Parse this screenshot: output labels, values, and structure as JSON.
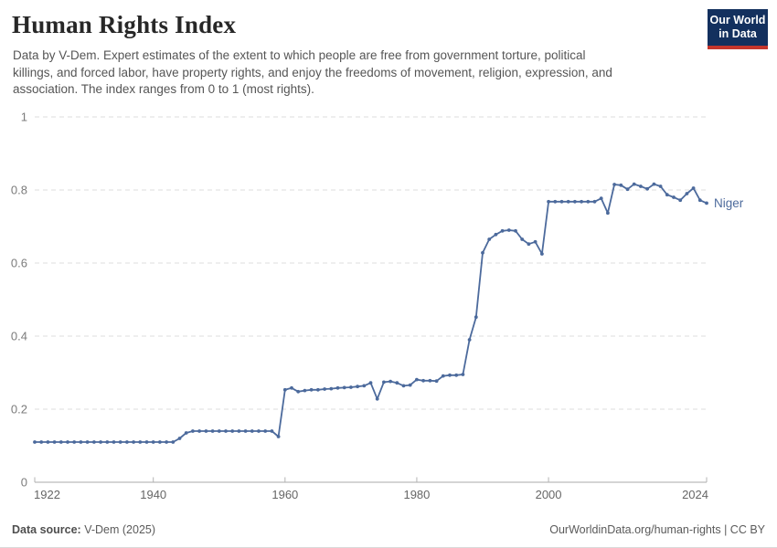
{
  "header": {
    "title": "Human Rights Index",
    "subtitle_lines": [
      "Data by V-Dem. Expert estimates of the extent to which people are free from government torture, political",
      "killings, and forced labor, have property rights, and enjoy the freedoms of movement, religion, expression, and",
      "association. The index ranges from 0 to 1 (most rights)."
    ]
  },
  "logo": {
    "line1": "Our World",
    "line2": "in Data",
    "bg_color": "#13305E",
    "bar_color": "#C5362C"
  },
  "chart_data": {
    "type": "line",
    "title": "Human Rights Index",
    "xlabel": "",
    "ylabel": "",
    "xlim": [
      1922,
      2024
    ],
    "ylim": [
      0,
      1
    ],
    "x_ticks": [
      1922,
      1940,
      1960,
      1980,
      2000,
      2024
    ],
    "y_ticks": [
      0,
      0.2,
      0.4,
      0.6,
      0.8,
      1
    ],
    "grid": true,
    "legend_position": "end-of-line",
    "series": [
      {
        "name": "Niger",
        "color": "#4C6A9C",
        "x": [
          1922,
          1923,
          1924,
          1925,
          1926,
          1927,
          1928,
          1929,
          1930,
          1931,
          1932,
          1933,
          1934,
          1935,
          1936,
          1937,
          1938,
          1939,
          1940,
          1941,
          1942,
          1943,
          1944,
          1945,
          1946,
          1947,
          1948,
          1949,
          1950,
          1951,
          1952,
          1953,
          1954,
          1955,
          1956,
          1957,
          1958,
          1959,
          1960,
          1961,
          1962,
          1963,
          1964,
          1965,
          1966,
          1967,
          1968,
          1969,
          1970,
          1971,
          1972,
          1973,
          1974,
          1975,
          1976,
          1977,
          1978,
          1979,
          1980,
          1981,
          1982,
          1983,
          1984,
          1985,
          1986,
          1987,
          1988,
          1989,
          1990,
          1991,
          1992,
          1993,
          1994,
          1995,
          1996,
          1997,
          1998,
          1999,
          2000,
          2001,
          2002,
          2003,
          2004,
          2005,
          2006,
          2007,
          2008,
          2009,
          2010,
          2011,
          2012,
          2013,
          2014,
          2015,
          2016,
          2017,
          2018,
          2019,
          2020,
          2021,
          2022,
          2023,
          2024
        ],
        "values": [
          0.11,
          0.11,
          0.11,
          0.11,
          0.11,
          0.11,
          0.11,
          0.11,
          0.11,
          0.11,
          0.11,
          0.11,
          0.11,
          0.11,
          0.11,
          0.11,
          0.11,
          0.11,
          0.11,
          0.11,
          0.11,
          0.11,
          0.12,
          0.135,
          0.14,
          0.14,
          0.14,
          0.14,
          0.14,
          0.14,
          0.14,
          0.14,
          0.14,
          0.14,
          0.14,
          0.14,
          0.14,
          0.125,
          0.253,
          0.258,
          0.248,
          0.251,
          0.253,
          0.253,
          0.255,
          0.256,
          0.258,
          0.259,
          0.26,
          0.262,
          0.264,
          0.272,
          0.228,
          0.274,
          0.276,
          0.272,
          0.264,
          0.266,
          0.281,
          0.278,
          0.278,
          0.277,
          0.291,
          0.293,
          0.293,
          0.295,
          0.39,
          0.452,
          0.628,
          0.665,
          0.678,
          0.688,
          0.69,
          0.688,
          0.665,
          0.652,
          0.658,
          0.625,
          0.768,
          0.768,
          0.768,
          0.768,
          0.768,
          0.768,
          0.768,
          0.768,
          0.777,
          0.737,
          0.815,
          0.813,
          0.802,
          0.816,
          0.81,
          0.803,
          0.816,
          0.81,
          0.787,
          0.78,
          0.772,
          0.79,
          0.805,
          0.772,
          0.764
        ]
      }
    ]
  },
  "footer": {
    "source_label": "Data source:",
    "source_value": "V-Dem (2025)",
    "credit": "OurWorldinData.org/human-rights | CC BY"
  }
}
